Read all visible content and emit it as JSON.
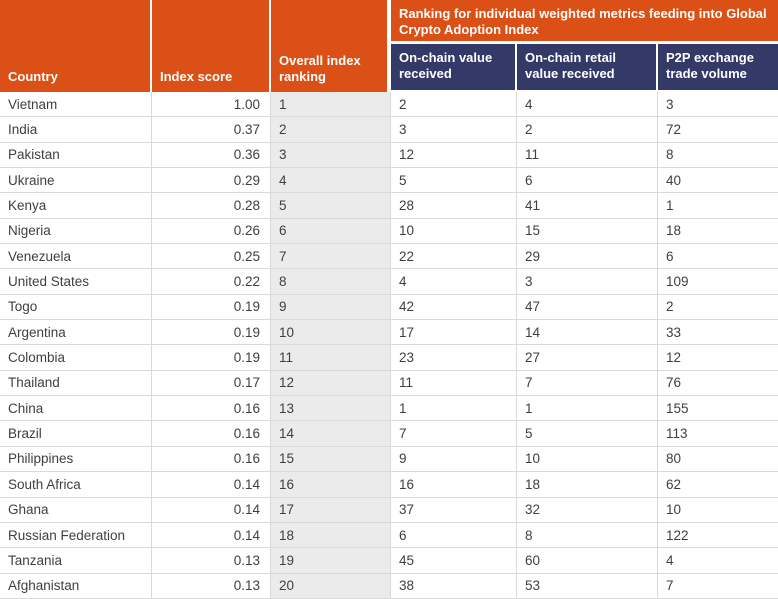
{
  "colors": {
    "header_orange": "#DB5016",
    "header_navy": "#333A68",
    "rank_column_bg": "#EBEBEB",
    "row_border": "#D9D9D9",
    "data_text": "#3F3F3F",
    "header_text": "#FFFFFF"
  },
  "header": {
    "country": "Country",
    "index_score": "Index score",
    "overall_ranking": "Overall index ranking",
    "metrics_group_title": "Ranking for individual weighted metrics feeding into Global Crypto Adoption Index",
    "metric_onchain_value": "On-chain value received",
    "metric_onchain_retail": "On-chain retail value received",
    "metric_p2p": "P2P exchange trade volume"
  },
  "rows": [
    {
      "country": "Vietnam",
      "score": "1.00",
      "rank": "1",
      "onchain": "2",
      "retail": "4",
      "p2p": "3"
    },
    {
      "country": "India",
      "score": "0.37",
      "rank": "2",
      "onchain": "3",
      "retail": "2",
      "p2p": "72"
    },
    {
      "country": "Pakistan",
      "score": "0.36",
      "rank": "3",
      "onchain": "12",
      "retail": "11",
      "p2p": "8"
    },
    {
      "country": "Ukraine",
      "score": "0.29",
      "rank": "4",
      "onchain": "5",
      "retail": "6",
      "p2p": "40"
    },
    {
      "country": "Kenya",
      "score": "0.28",
      "rank": "5",
      "onchain": "28",
      "retail": "41",
      "p2p": "1"
    },
    {
      "country": "Nigeria",
      "score": "0.26",
      "rank": "6",
      "onchain": "10",
      "retail": "15",
      "p2p": "18"
    },
    {
      "country": "Venezuela",
      "score": "0.25",
      "rank": "7",
      "onchain": "22",
      "retail": "29",
      "p2p": "6"
    },
    {
      "country": "United States",
      "score": "0.22",
      "rank": "8",
      "onchain": "4",
      "retail": "3",
      "p2p": "109"
    },
    {
      "country": "Togo",
      "score": "0.19",
      "rank": "9",
      "onchain": "42",
      "retail": "47",
      "p2p": "2"
    },
    {
      "country": "Argentina",
      "score": "0.19",
      "rank": "10",
      "onchain": "17",
      "retail": "14",
      "p2p": "33"
    },
    {
      "country": "Colombia",
      "score": "0.19",
      "rank": "11",
      "onchain": "23",
      "retail": "27",
      "p2p": "12"
    },
    {
      "country": "Thailand",
      "score": "0.17",
      "rank": "12",
      "onchain": "11",
      "retail": "7",
      "p2p": "76"
    },
    {
      "country": "China",
      "score": "0.16",
      "rank": "13",
      "onchain": "1",
      "retail": "1",
      "p2p": "155"
    },
    {
      "country": "Brazil",
      "score": "0.16",
      "rank": "14",
      "onchain": "7",
      "retail": "5",
      "p2p": "113"
    },
    {
      "country": "Philippines",
      "score": "0.16",
      "rank": "15",
      "onchain": "9",
      "retail": "10",
      "p2p": "80"
    },
    {
      "country": "South Africa",
      "score": "0.14",
      "rank": "16",
      "onchain": "16",
      "retail": "18",
      "p2p": "62"
    },
    {
      "country": "Ghana",
      "score": "0.14",
      "rank": "17",
      "onchain": "37",
      "retail": "32",
      "p2p": "10"
    },
    {
      "country": "Russian Federation",
      "score": "0.14",
      "rank": "18",
      "onchain": "6",
      "retail": "8",
      "p2p": "122"
    },
    {
      "country": "Tanzania",
      "score": "0.13",
      "rank": "19",
      "onchain": "45",
      "retail": "60",
      "p2p": "4"
    },
    {
      "country": "Afghanistan",
      "score": "0.13",
      "rank": "20",
      "onchain": "38",
      "retail": "53",
      "p2p": "7"
    }
  ],
  "chart_data": {
    "type": "table",
    "title": "Ranking for individual weighted metrics feeding into Global Crypto Adoption Index",
    "columns": [
      "Country",
      "Index score",
      "Overall index ranking",
      "On-chain value received",
      "On-chain retail value received",
      "P2P exchange trade volume"
    ],
    "rows": [
      [
        "Vietnam",
        1.0,
        1,
        2,
        4,
        3
      ],
      [
        "India",
        0.37,
        2,
        3,
        2,
        72
      ],
      [
        "Pakistan",
        0.36,
        3,
        12,
        11,
        8
      ],
      [
        "Ukraine",
        0.29,
        4,
        5,
        6,
        40
      ],
      [
        "Kenya",
        0.28,
        5,
        28,
        41,
        1
      ],
      [
        "Nigeria",
        0.26,
        6,
        10,
        15,
        18
      ],
      [
        "Venezuela",
        0.25,
        7,
        22,
        29,
        6
      ],
      [
        "United States",
        0.22,
        8,
        4,
        3,
        109
      ],
      [
        "Togo",
        0.19,
        9,
        42,
        47,
        2
      ],
      [
        "Argentina",
        0.19,
        10,
        17,
        14,
        33
      ],
      [
        "Colombia",
        0.19,
        11,
        23,
        27,
        12
      ],
      [
        "Thailand",
        0.17,
        12,
        11,
        7,
        76
      ],
      [
        "China",
        0.16,
        13,
        1,
        1,
        155
      ],
      [
        "Brazil",
        0.16,
        14,
        7,
        5,
        113
      ],
      [
        "Philippines",
        0.16,
        15,
        9,
        10,
        80
      ],
      [
        "South Africa",
        0.14,
        16,
        16,
        18,
        62
      ],
      [
        "Ghana",
        0.14,
        17,
        37,
        32,
        10
      ],
      [
        "Russian Federation",
        0.14,
        18,
        6,
        8,
        122
      ],
      [
        "Tanzania",
        0.13,
        19,
        45,
        60,
        4
      ],
      [
        "Afghanistan",
        0.13,
        20,
        38,
        53,
        7
      ]
    ]
  }
}
